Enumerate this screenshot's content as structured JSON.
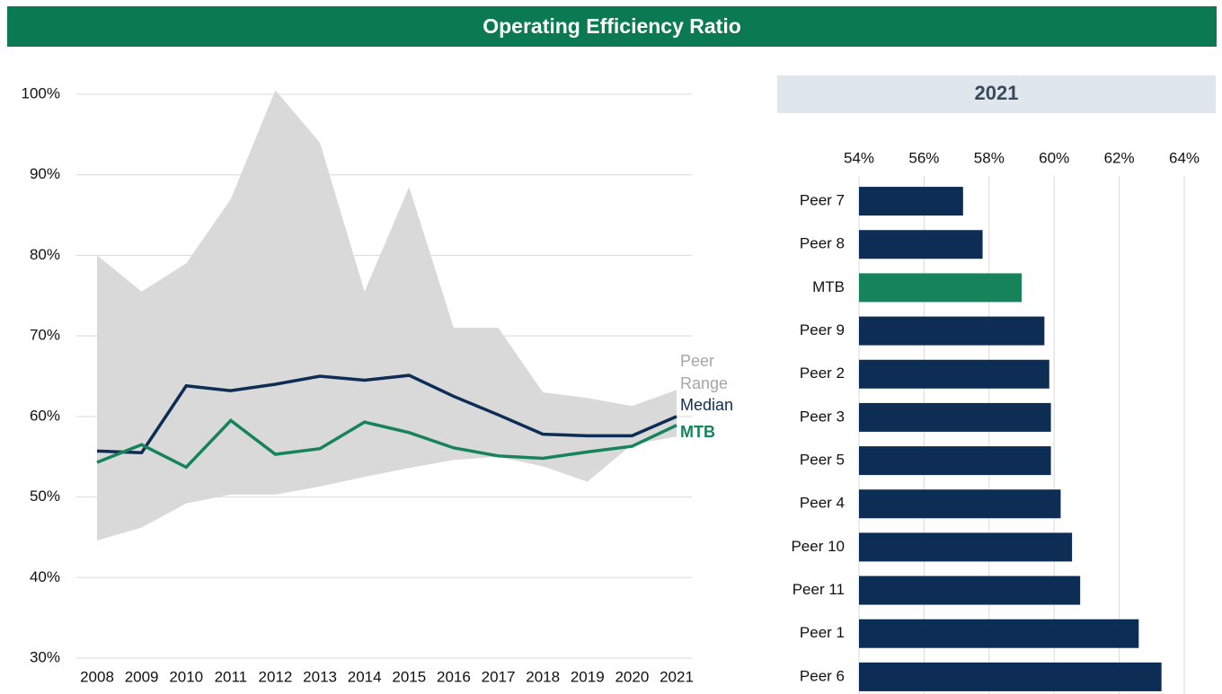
{
  "header": {
    "title": "Operating Efficiency Ratio"
  },
  "chart_data": [
    {
      "type": "line",
      "x": [
        2008,
        2009,
        2010,
        2011,
        2012,
        2013,
        2014,
        2015,
        2016,
        2017,
        2018,
        2019,
        2020,
        2021
      ],
      "ylim": [
        30,
        100
      ],
      "yticks": [
        {
          "value": 30,
          "label": "30%"
        },
        {
          "value": 40,
          "label": "40%"
        },
        {
          "value": 50,
          "label": "50%"
        },
        {
          "value": 60,
          "label": "60%"
        },
        {
          "value": 70,
          "label": "70%"
        },
        {
          "value": 80,
          "label": "80%"
        },
        {
          "value": 90,
          "label": "90%"
        },
        {
          "value": 100,
          "label": "100%"
        }
      ],
      "grid": true,
      "series": [
        {
          "name": "Peer Range",
          "kind": "range",
          "color": "#d9d9d9",
          "label_color": "#a6a6a6",
          "high": [
            80,
            75.5,
            79,
            87,
            100.5,
            94,
            75.5,
            88.5,
            71,
            71,
            63,
            62.3,
            61.3,
            63.3
          ],
          "low": [
            44.6,
            46.2,
            49.2,
            50.3,
            50.3,
            51.3,
            52.5,
            53.6,
            54.6,
            55,
            53.8,
            51.9,
            56.5,
            57.5
          ]
        },
        {
          "name": "Median",
          "color": "#0d2d55",
          "values": [
            55.7,
            55.5,
            63.8,
            63.2,
            64,
            65,
            64.5,
            65.1,
            62.5,
            60.2,
            57.8,
            57.6,
            57.6,
            60
          ]
        },
        {
          "name": "MTB",
          "color": "#16835a",
          "values": [
            54.3,
            56.5,
            53.7,
            59.5,
            55.3,
            56,
            59.3,
            58,
            56.1,
            55.1,
            54.8,
            55.6,
            56.3,
            58.9
          ]
        }
      ]
    },
    {
      "type": "barh",
      "title": "2021",
      "categories": [
        "Peer 7",
        "Peer 8",
        "MTB",
        "Peer 9",
        "Peer 2",
        "Peer 3",
        "Peer 5",
        "Peer 4",
        "Peer 10",
        "Peer 11",
        "Peer 1",
        "Peer 6"
      ],
      "values": [
        57.2,
        57.8,
        59.0,
        59.7,
        59.85,
        59.9,
        59.9,
        60.2,
        60.55,
        60.8,
        62.6,
        63.3
      ],
      "colors": [
        "#0d2d55",
        "#0d2d55",
        "#16835a",
        "#0d2d55",
        "#0d2d55",
        "#0d2d55",
        "#0d2d55",
        "#0d2d55",
        "#0d2d55",
        "#0d2d55",
        "#0d2d55",
        "#0d2d55"
      ],
      "xlim": [
        54,
        64
      ],
      "xticks": [
        {
          "value": 54,
          "label": "54%"
        },
        {
          "value": 56,
          "label": "56%"
        },
        {
          "value": 58,
          "label": "58%"
        },
        {
          "value": 60,
          "label": "60%"
        },
        {
          "value": 62,
          "label": "62%"
        },
        {
          "value": 64,
          "label": "64%"
        }
      ],
      "grid": true
    }
  ]
}
